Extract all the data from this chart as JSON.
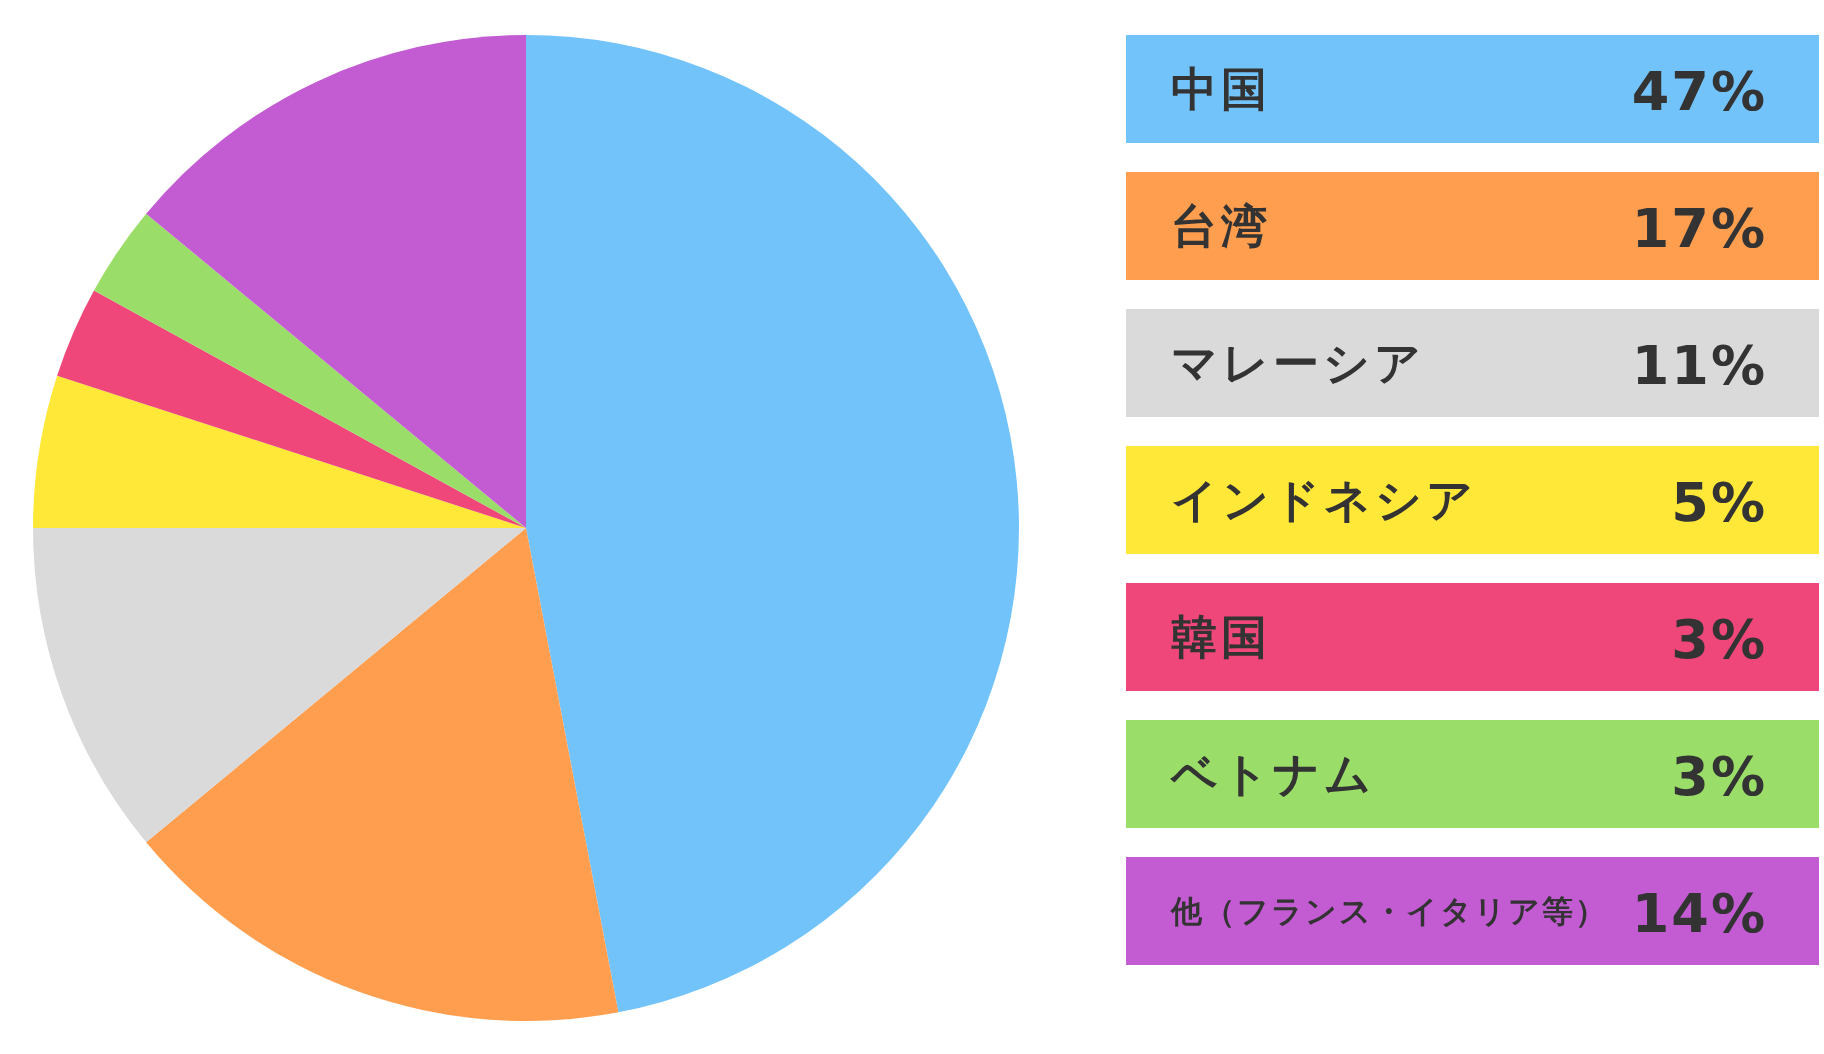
{
  "chart_data": {
    "type": "pie",
    "categories": [
      "中国",
      "台湾",
      "マレーシア",
      "インドネシア",
      "韓国",
      "ベトナム",
      "他（フランス・イタリア等）"
    ],
    "values": [
      47,
      17,
      11,
      5,
      3,
      3,
      14
    ],
    "value_labels": [
      "47%",
      "17%",
      "11%",
      "5%",
      "3%",
      "3%",
      "14%"
    ],
    "colors": [
      "#73c3fb",
      "#fe9e4e",
      "#dadada",
      "#ffe838",
      "#f0477a",
      "#9add69",
      "#c35bd3"
    ],
    "legend": "right"
  }
}
